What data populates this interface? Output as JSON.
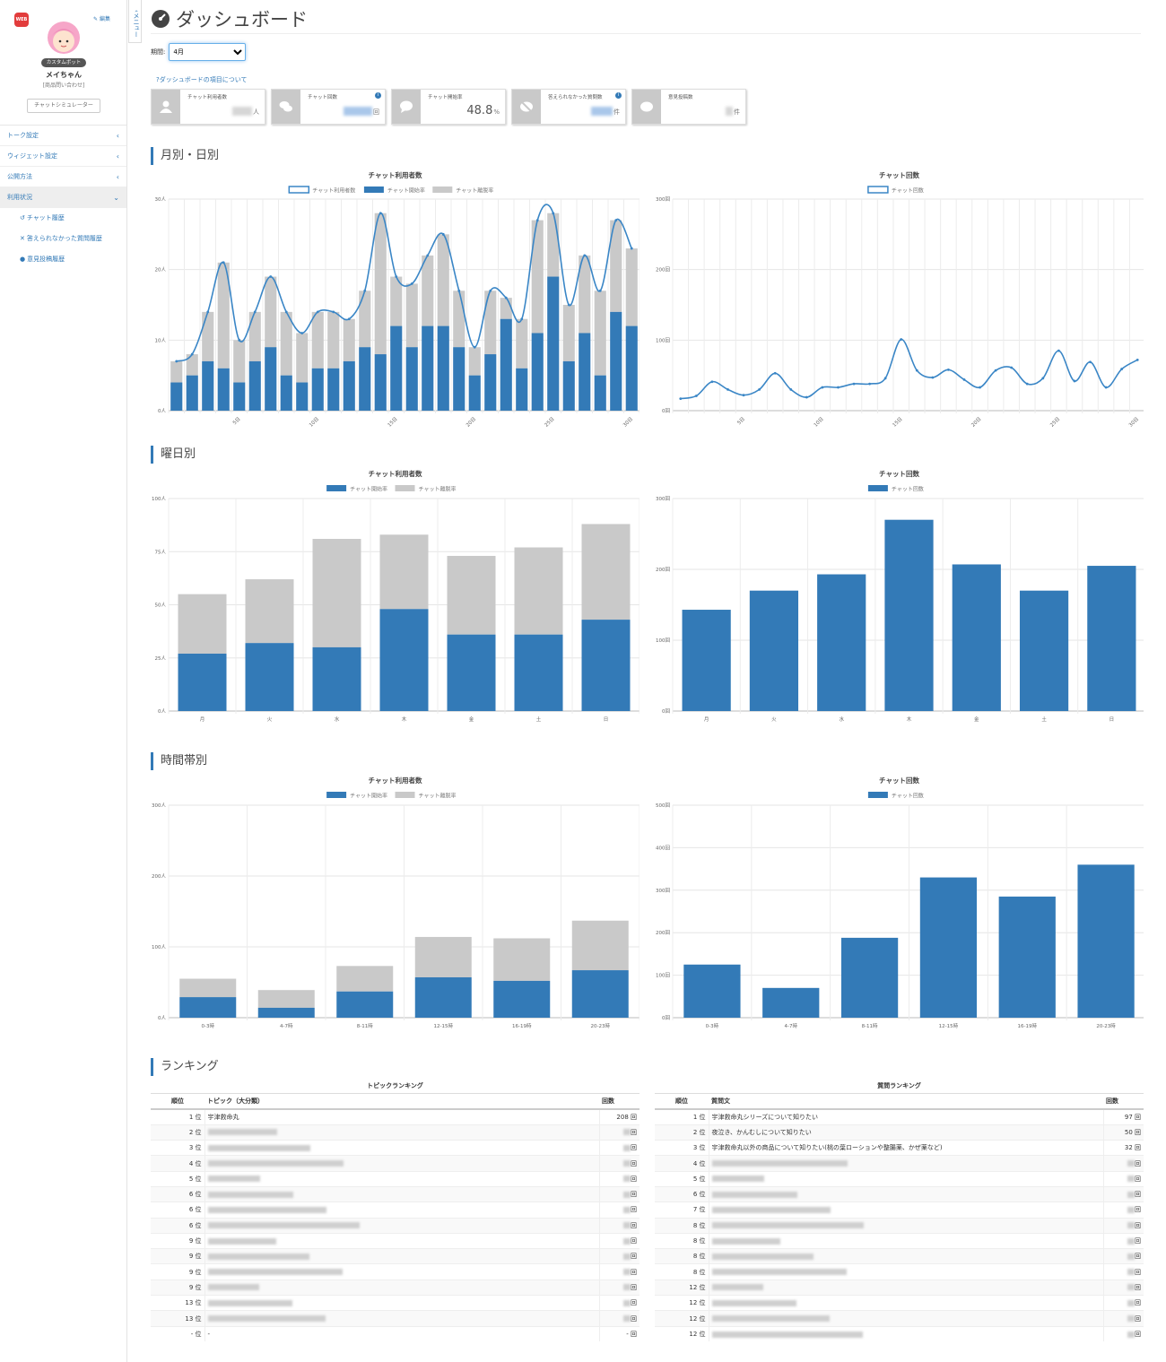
{
  "sidebar": {
    "web_badge": "WEB",
    "edit_label": "編集",
    "bot_badge": "カスタムボット",
    "bot_name": "メイちゃん",
    "bot_sub": "[商品問い合わせ]",
    "simulator_label": "チャットシミュレーター",
    "nav": [
      {
        "label": "トーク設定"
      },
      {
        "label": "ウィジェット設定"
      },
      {
        "label": "公開方法"
      },
      {
        "label": "利用状況"
      }
    ],
    "sub_nav": [
      {
        "label": "チャット履歴"
      },
      {
        "label": "答えられなかった質問履歴"
      },
      {
        "label": "意見投稿履歴"
      }
    ],
    "menu_tab": "メニュー"
  },
  "header": {
    "title": "ダッシュボード",
    "period_label": "期間:",
    "period_value": "4月",
    "help_link": "ダッシュボードの項目について"
  },
  "kpis": [
    {
      "label": "チャット利用者数",
      "unit": "人",
      "info": false
    },
    {
      "label": "チャット回数",
      "unit": "回",
      "info": true
    },
    {
      "label": "チャット開始率",
      "value": "48.8",
      "unit": "%",
      "info": false
    },
    {
      "label": "答えられなかった質問数",
      "unit": "件",
      "info": true
    },
    {
      "label": "意見投稿数",
      "unit": "件",
      "info": false
    }
  ],
  "sections": {
    "monthly": "月別・日別",
    "weekday": "曜日別",
    "hourly": "時間帯別",
    "ranking": "ランキング"
  },
  "colors": {
    "blue": "#337ab7",
    "gray": "#c9c9c9",
    "line": "#3a86c6"
  },
  "chart_data": [
    {
      "id": "daily-users",
      "type": "bar",
      "title": "チャット利用者数",
      "legend": [
        "チャット利用者数",
        "チャット開始率",
        "チャット離脱率"
      ],
      "ylim": [
        0,
        30
      ],
      "yticks": [
        "0人",
        "10人",
        "20人",
        "30人"
      ],
      "xticks": [
        {
          "i": 4,
          "label": "5日"
        },
        {
          "i": 9,
          "label": "10日"
        },
        {
          "i": 14,
          "label": "15日"
        },
        {
          "i": 19,
          "label": "20日"
        },
        {
          "i": 24,
          "label": "25日"
        },
        {
          "i": 29,
          "label": "30日"
        }
      ],
      "start": [
        4,
        5,
        7,
        6,
        4,
        7,
        9,
        5,
        4,
        6,
        6,
        7,
        9,
        8,
        12,
        9,
        12,
        12,
        9,
        5,
        8,
        13,
        6,
        11,
        19,
        7,
        11,
        5,
        14,
        12
      ],
      "total": [
        7,
        8,
        14,
        21,
        10,
        14,
        19,
        14,
        11,
        14,
        14,
        13,
        17,
        28,
        19,
        18,
        22,
        25,
        17,
        9,
        17,
        16,
        13,
        27,
        28,
        15,
        22,
        17,
        27,
        23
      ]
    },
    {
      "id": "daily-chats",
      "type": "line",
      "title": "チャット回数",
      "legend": [
        "チャット回数"
      ],
      "ylim": [
        0,
        300
      ],
      "yticks": [
        "0回",
        "100回",
        "200回",
        "300回"
      ],
      "xticks": [
        {
          "i": 4,
          "label": "5日"
        },
        {
          "i": 9,
          "label": "10日"
        },
        {
          "i": 14,
          "label": "15日"
        },
        {
          "i": 19,
          "label": "20日"
        },
        {
          "i": 24,
          "label": "25日"
        },
        {
          "i": 29,
          "label": "30日"
        }
      ],
      "values": [
        17,
        21,
        41,
        30,
        22,
        30,
        53,
        30,
        19,
        33,
        33,
        38,
        38,
        46,
        101,
        57,
        47,
        58,
        44,
        33,
        57,
        61,
        38,
        46,
        85,
        42,
        69,
        33,
        59,
        72
      ]
    },
    {
      "id": "weekday-users",
      "type": "bar",
      "title": "チャット利用者数",
      "legend": [
        "チャット開始率",
        "チャット離脱率"
      ],
      "ylim": [
        0,
        100
      ],
      "yticks": [
        "0人",
        "25人",
        "50人",
        "75人",
        "100人"
      ],
      "categories": [
        "月",
        "火",
        "水",
        "木",
        "金",
        "土",
        "日"
      ],
      "start": [
        27,
        32,
        30,
        48,
        36,
        36,
        43
      ],
      "total": [
        55,
        62,
        81,
        83,
        73,
        77,
        88
      ]
    },
    {
      "id": "weekday-chats",
      "type": "bar",
      "title": "チャット回数",
      "legend": [
        "チャット回数"
      ],
      "ylim": [
        0,
        300
      ],
      "yticks": [
        "0回",
        "100回",
        "200回",
        "300回"
      ],
      "categories": [
        "月",
        "火",
        "水",
        "木",
        "金",
        "土",
        "日"
      ],
      "values": [
        143,
        170,
        193,
        270,
        207,
        170,
        205
      ]
    },
    {
      "id": "hourly-users",
      "type": "bar",
      "title": "チャット利用者数",
      "legend": [
        "チャット開始率",
        "チャット離脱率"
      ],
      "ylim": [
        0,
        300
      ],
      "yticks": [
        "0人",
        "100人",
        "200人",
        "300人"
      ],
      "categories": [
        "0-3時",
        "4-7時",
        "8-11時",
        "12-15時",
        "16-19時",
        "20-23時"
      ],
      "start": [
        29,
        14,
        37,
        57,
        52,
        67
      ],
      "total": [
        55,
        39,
        73,
        114,
        112,
        137
      ]
    },
    {
      "id": "hourly-chats",
      "type": "bar",
      "title": "チャット回数",
      "legend": [
        "チャット回数"
      ],
      "ylim": [
        0,
        500
      ],
      "yticks": [
        "0回",
        "100回",
        "200回",
        "300回",
        "400回",
        "500回"
      ],
      "categories": [
        "0-3時",
        "4-7時",
        "8-11時",
        "12-15時",
        "16-19時",
        "20-23時"
      ],
      "values": [
        125,
        70,
        188,
        330,
        285,
        360
      ]
    }
  ],
  "rank_topic": {
    "title": "トピックランキング",
    "headers": [
      "順位",
      "トピック（大分類）",
      "回数"
    ],
    "rows": [
      {
        "pos": "1 位",
        "text": "宇津救命丸",
        "count": "208 回"
      },
      {
        "pos": "2 位",
        "count": "回"
      },
      {
        "pos": "3 位",
        "count": "回"
      },
      {
        "pos": "4 位",
        "count": "回"
      },
      {
        "pos": "5 位",
        "count": "回"
      },
      {
        "pos": "6 位",
        "count": "回"
      },
      {
        "pos": "6 位",
        "count": "回"
      },
      {
        "pos": "6 位",
        "count": "回"
      },
      {
        "pos": "9 位",
        "count": "回"
      },
      {
        "pos": "9 位",
        "count": "回"
      },
      {
        "pos": "9 位",
        "count": "回"
      },
      {
        "pos": "9 位",
        "count": "回"
      },
      {
        "pos": "13 位",
        "count": "回"
      },
      {
        "pos": "13 位",
        "count": "回"
      },
      {
        "pos": "- 位",
        "text": "-",
        "count": "- 回"
      }
    ]
  },
  "rank_question": {
    "title": "質問ランキング",
    "headers": [
      "順位",
      "質問文",
      "回数"
    ],
    "rows": [
      {
        "pos": "1 位",
        "text": "宇津救命丸シリーズについて知りたい",
        "count": "97 回"
      },
      {
        "pos": "2 位",
        "text": "夜泣き、かんむしについて知りたい",
        "count": "50 回"
      },
      {
        "pos": "3 位",
        "text": "宇津救命丸以外の商品について知りたい(桃の葉ローションや整腸薬、かぜ薬など)",
        "count": "32 回"
      },
      {
        "pos": "4 位",
        "count": "回"
      },
      {
        "pos": "5 位",
        "count": "回"
      },
      {
        "pos": "6 位",
        "count": "回"
      },
      {
        "pos": "7 位",
        "count": "回"
      },
      {
        "pos": "8 位",
        "count": "回"
      },
      {
        "pos": "8 位",
        "count": "回"
      },
      {
        "pos": "8 位",
        "count": "回"
      },
      {
        "pos": "8 位",
        "count": "回"
      },
      {
        "pos": "12 位",
        "count": "回"
      },
      {
        "pos": "12 位",
        "count": "回"
      },
      {
        "pos": "12 位",
        "count": "回"
      },
      {
        "pos": "12 位",
        "count": "回"
      }
    ]
  }
}
